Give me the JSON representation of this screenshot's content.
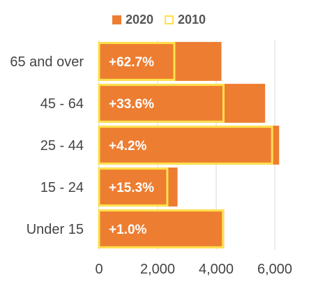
{
  "chart_data": {
    "type": "bar",
    "orientation": "horizontal",
    "categories": [
      "65 and over",
      "45 - 64",
      "25 - 44",
      "15 - 24",
      "Under 15"
    ],
    "series": [
      {
        "name": "2020",
        "values": [
          4180,
          5670,
          6150,
          2680,
          4270
        ]
      },
      {
        "name": "2010",
        "values": [
          2570,
          4250,
          5910,
          2330,
          4230
        ]
      }
    ],
    "data_labels": [
      "+62.7%",
      "+33.6%",
      "+4.2%",
      "+15.3%",
      "+1.0%"
    ],
    "xlim": [
      0,
      7000
    ],
    "xticks": [
      0,
      2000,
      4000,
      6000
    ],
    "xtick_labels": [
      "0",
      "2,000",
      "4,000",
      "6,000"
    ],
    "grid": true,
    "legend_position": "top",
    "colors": {
      "2020": "#ED7D31",
      "2010_outline": "#FFE14D",
      "grid": "#d9d9d9"
    }
  }
}
